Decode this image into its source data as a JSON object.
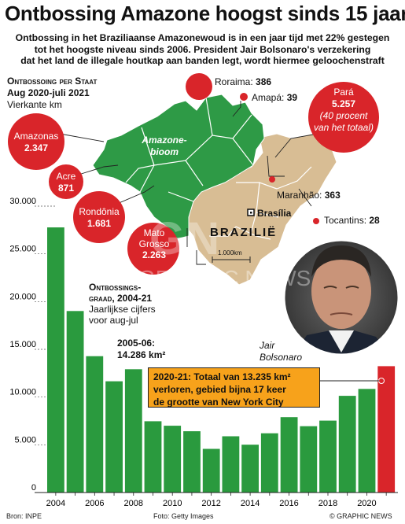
{
  "title": "Ontbossing Amazone hoogst sinds 15 jaar",
  "subtitle": [
    "Ontbossing in het Braziliaanse Amazonewoud is in een jaar tijd met 22% gestegen",
    "tot het hoogste niveau sinds 2006. President Jair Bolsonaro's verzekering",
    "dat het land de illegale houtkap aan banden legt, wordt hiermee geloochenstraft"
  ],
  "map_section": {
    "heading": "Ontbossoing per Staat",
    "period": "Aug 2020-juli 2021",
    "unit": "Vierkante km",
    "amazon_label_1": "Amazone-",
    "amazon_label_2": "bioom",
    "country": "BRAZILIË",
    "capital": "Brasília",
    "scale": "1.000km"
  },
  "states": [
    {
      "name": "Roraima",
      "value": "386"
    },
    {
      "name": "Amapá",
      "value": "39"
    },
    {
      "name": "Pará",
      "value": "5.257",
      "note_1": "(40 procent",
      "note_2": "van het totaal)"
    },
    {
      "name": "Amazonas",
      "value": "2.347"
    },
    {
      "name": "Acre",
      "value": "871"
    },
    {
      "name": "Rondônia",
      "value": "1.681"
    },
    {
      "name": "Mato Grosso",
      "value": "2.263"
    },
    {
      "name": "Maranhão",
      "value": "363"
    },
    {
      "name": "Tocantins",
      "value": "28"
    }
  ],
  "chart_section": {
    "heading_1": "Ontbossings-",
    "heading_2": "graad, 2004-21",
    "sub_1": "Jaarlijkse cijfers",
    "sub_2": "voor aug-jul",
    "annot_2006_1": "2005-06:",
    "annot_2006_2": "14.286 km²",
    "callout": [
      "2020-21: Totaal van 13.235 km²",
      "verloren, gebied bijna 17 keer",
      "de grootte van New York City"
    ]
  },
  "person_caption_1": "Jair",
  "person_caption_2": "Bolsonaro",
  "source_left": "Bron: INPE",
  "source_mid": "Foto: Getty Images",
  "source_right": "© GRAPHIC NEWS",
  "watermark_1": "GN",
  "watermark_2": "GRAPHIC NEWS",
  "colors": {
    "bars": "#2a9a3e",
    "highlight": "#d9252a",
    "callout": "#f7a21b",
    "map_green": "#2e9a46",
    "map_beige": "#d8bd94",
    "bubble_red": "#d9252a"
  },
  "chart_data": {
    "type": "bar",
    "categories": [
      "2004",
      "2005",
      "2006",
      "2007",
      "2008",
      "2009",
      "2010",
      "2011",
      "2012",
      "2013",
      "2014",
      "2015",
      "2016",
      "2017",
      "2018",
      "2019",
      "2020",
      "2021"
    ],
    "values": [
      27772,
      19014,
      14286,
      11651,
      12911,
      7464,
      7000,
      6418,
      4571,
      5891,
      5012,
      6207,
      7893,
      6947,
      7536,
      10129,
      10851,
      13235
    ],
    "highlight_index": 17,
    "y_ticks": [
      0,
      5000,
      10000,
      15000,
      20000,
      25000,
      30000
    ],
    "y_tick_labels": [
      "0",
      "5.000",
      "10.000",
      "15.000",
      "20.000",
      "25.000",
      "30.000"
    ],
    "x_tick_labels": [
      "2004",
      "2006",
      "2008",
      "2010",
      "2012",
      "2014",
      "2016",
      "2018",
      "2020"
    ],
    "ylim": [
      0,
      30000
    ],
    "grid": true
  }
}
